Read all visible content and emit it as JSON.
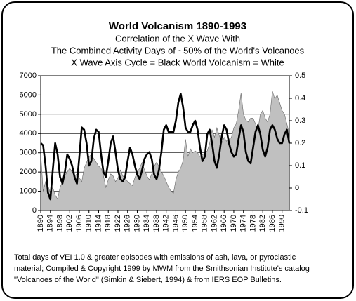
{
  "chart_data": {
    "type": "area_line",
    "title": "World Volcanism 1890-1993",
    "subtitle": [
      "Correlation of the X Wave With",
      "The Combined Activity Days of ~50% of the World's Volcanoes",
      "X Wave Axis Cycle = Black     World Volcanism = White"
    ],
    "footnote": [
      "Total days of VEI 1.0 & greater episodes with emissions of ash, lava, or pyroclastic",
      "material; Compiled & Copyright 1999 by MWM from the Smithsonian Institute's catalog",
      "\"Volcanoes of the World\" (Simkin & Siebert, 1994) & from IERS EOP Bulletins."
    ],
    "x": [
      1890,
      1891,
      1892,
      1893,
      1894,
      1895,
      1896,
      1897,
      1898,
      1899,
      1900,
      1901,
      1902,
      1903,
      1904,
      1905,
      1906,
      1907,
      1908,
      1909,
      1910,
      1911,
      1912,
      1913,
      1914,
      1915,
      1916,
      1917,
      1918,
      1919,
      1920,
      1921,
      1922,
      1923,
      1924,
      1925,
      1926,
      1927,
      1928,
      1929,
      1930,
      1931,
      1932,
      1933,
      1934,
      1935,
      1936,
      1937,
      1938,
      1939,
      1940,
      1941,
      1942,
      1943,
      1944,
      1945,
      1946,
      1947,
      1948,
      1949,
      1950,
      1951,
      1952,
      1953,
      1954,
      1955,
      1956,
      1957,
      1958,
      1959,
      1960,
      1961,
      1962,
      1963,
      1964,
      1965,
      1966,
      1967,
      1968,
      1969,
      1970,
      1971,
      1972,
      1973,
      1974,
      1975,
      1976,
      1977,
      1978,
      1979,
      1980,
      1981,
      1982,
      1983,
      1984,
      1985,
      1986,
      1987,
      1988,
      1989,
      1990,
      1991,
      1992,
      1993
    ],
    "series": [
      {
        "color": "#c0c0c0",
        "axis": "y",
        "values": [
          3000,
          1000,
          1500,
          1300,
          900,
          1200,
          800,
          600,
          1200,
          1500,
          1800,
          2000,
          2200,
          2000,
          1800,
          1900,
          1700,
          1500,
          2200,
          2500,
          2800,
          2900,
          2700,
          2500,
          2300,
          2200,
          1800,
          1200,
          1600,
          1900,
          1800,
          1500,
          1700,
          2100,
          1800,
          1700,
          1500,
          1400,
          1300,
          1700,
          2000,
          2200,
          2500,
          2100,
          1800,
          1600,
          1900,
          2300,
          2500,
          2300,
          2000,
          1800,
          1500,
          1200,
          1000,
          900,
          1600,
          2000,
          2200,
          2600,
          3700,
          2800,
          3200,
          3000,
          3100,
          3000,
          2800,
          2900,
          3000,
          3100,
          3500,
          4200,
          3800,
          4300,
          3900,
          3500,
          3800,
          3600,
          3700,
          3800,
          4300,
          4500,
          5200,
          6100,
          5000,
          4700,
          4600,
          4800,
          4800,
          4500,
          4200,
          5000,
          5200,
          4800,
          4600,
          5000,
          6200,
          5800,
          6000,
          5600,
          5200,
          5000,
          4500,
          4000
        ]
      },
      {
        "color": "#000000",
        "axis": "y2",
        "values": [
          0.2,
          0.19,
          0.1,
          -0.02,
          -0.05,
          0.08,
          0.2,
          0.15,
          0.05,
          0.02,
          0.07,
          0.15,
          0.13,
          0.1,
          0.05,
          0.02,
          0.14,
          0.27,
          0.26,
          0.2,
          0.1,
          0.12,
          0.22,
          0.26,
          0.25,
          0.15,
          0.07,
          0.05,
          0.12,
          0.2,
          0.23,
          0.16,
          0.08,
          0.04,
          0.03,
          0.05,
          0.12,
          0.18,
          0.15,
          0.1,
          0.06,
          0.04,
          0.08,
          0.13,
          0.15,
          0.16,
          0.13,
          0.06,
          0.04,
          0.08,
          0.16,
          0.26,
          0.28,
          0.25,
          0.25,
          0.25,
          0.3,
          0.38,
          0.42,
          0.36,
          0.27,
          0.25,
          0.25,
          0.28,
          0.3,
          0.26,
          0.18,
          0.12,
          0.14,
          0.24,
          0.26,
          0.2,
          0.12,
          0.09,
          0.15,
          0.23,
          0.28,
          0.26,
          0.2,
          0.16,
          0.14,
          0.15,
          0.22,
          0.28,
          0.25,
          0.16,
          0.12,
          0.11,
          0.18,
          0.25,
          0.28,
          0.24,
          0.17,
          0.14,
          0.18,
          0.26,
          0.28,
          0.26,
          0.22,
          0.2,
          0.2,
          0.24,
          0.26,
          0.2
        ]
      }
    ],
    "xlim": [
      1890,
      1993
    ],
    "xticks": [
      1890,
      1894,
      1898,
      1902,
      1906,
      1910,
      1914,
      1918,
      1922,
      1926,
      1930,
      1934,
      1938,
      1942,
      1946,
      1950,
      1954,
      1958,
      1962,
      1966,
      1970,
      1974,
      1978,
      1982,
      1986,
      1990
    ],
    "ylim": [
      0,
      7000
    ],
    "yticks": [
      0,
      1000,
      2000,
      3000,
      4000,
      5000,
      6000,
      7000
    ],
    "y2lim": [
      -0.1,
      0.5
    ],
    "y2ticks": [
      -0.1,
      0,
      0.1,
      0.2,
      0.3,
      0.4,
      0.5
    ],
    "grid": true
  }
}
